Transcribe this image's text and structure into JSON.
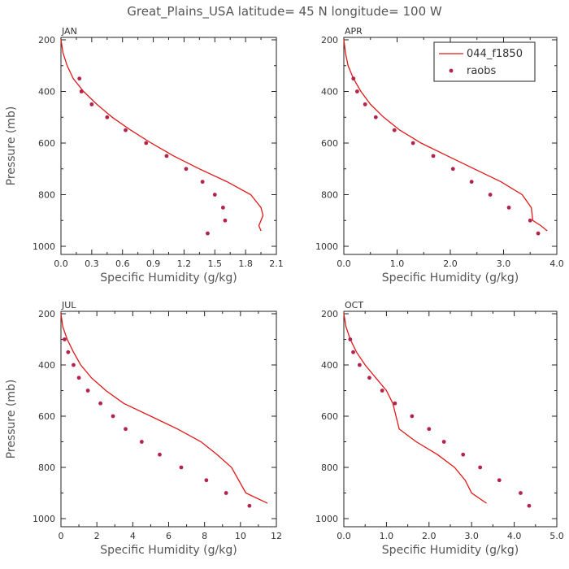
{
  "figure_title": "Great_Plains_USA   latitude=  45 N longitude=  100 W",
  "colors": {
    "model": "#e01818",
    "obs": "#b5234a",
    "text": "#555555"
  },
  "legend": {
    "model_label": "044_f1850",
    "obs_label": "raobs"
  },
  "chart_data": [
    {
      "type": "line",
      "panel": "JAN",
      "xlabel": "Specific Humidity (g/kg)",
      "ylabel": "Pressure (mb)",
      "xlim": [
        0,
        2.1
      ],
      "ylim": [
        200,
        1000
      ],
      "y_inverted": true,
      "xticks": [
        0,
        0.3,
        0.6,
        0.9,
        1.2,
        1.5,
        1.8,
        2.1
      ],
      "xtick_labels": [
        "0.0",
        "0.3",
        "0.6",
        "0.9",
        "1.2",
        "1.5",
        "1.8",
        "2.1"
      ],
      "yticks": [
        200,
        400,
        600,
        800,
        1000
      ],
      "ytick_labels": [
        "200",
        "400",
        "600",
        "800",
        "1000"
      ],
      "model": {
        "name": "044_f1850",
        "q": [
          0.0,
          0.02,
          0.06,
          0.12,
          0.22,
          0.35,
          0.5,
          0.68,
          0.88,
          1.1,
          1.35,
          1.62,
          1.85,
          1.95,
          1.97,
          1.94,
          1.93,
          1.95
        ],
        "p": [
          200,
          250,
          300,
          350,
          400,
          450,
          500,
          550,
          600,
          650,
          700,
          750,
          800,
          850,
          880,
          910,
          920,
          940
        ]
      },
      "raobs": {
        "name": "raobs",
        "q": [
          0.18,
          0.2,
          0.3,
          0.45,
          0.63,
          0.83,
          1.03,
          1.22,
          1.38,
          1.5,
          1.58,
          1.6,
          1.43
        ],
        "p": [
          350,
          400,
          450,
          500,
          550,
          600,
          650,
          700,
          750,
          800,
          850,
          900,
          950
        ]
      }
    },
    {
      "type": "line",
      "panel": "APR",
      "xlabel": "Specific Humidity (g/kg)",
      "ylabel": "",
      "xlim": [
        0,
        4.0
      ],
      "ylim": [
        200,
        1000
      ],
      "y_inverted": true,
      "xticks": [
        0,
        1,
        2,
        3,
        4
      ],
      "xtick_labels": [
        "0.0",
        "1.0",
        "2.0",
        "3.0",
        "4.0"
      ],
      "yticks": [
        200,
        400,
        600,
        800,
        1000
      ],
      "ytick_labels": [
        "200",
        "400",
        "600",
        "800",
        "1000"
      ],
      "model": {
        "name": "044_f1850",
        "q": [
          0.0,
          0.03,
          0.08,
          0.18,
          0.32,
          0.5,
          0.75,
          1.05,
          1.45,
          1.95,
          2.45,
          2.95,
          3.35,
          3.52,
          3.55,
          3.7,
          3.82
        ],
        "p": [
          200,
          250,
          300,
          350,
          400,
          450,
          500,
          550,
          600,
          650,
          700,
          750,
          800,
          850,
          900,
          920,
          940
        ]
      },
      "raobs": {
        "name": "raobs",
        "q": [
          0.18,
          0.25,
          0.4,
          0.6,
          0.95,
          1.3,
          1.68,
          2.05,
          2.4,
          2.75,
          3.1,
          3.5,
          3.65
        ],
        "p": [
          350,
          400,
          450,
          500,
          550,
          600,
          650,
          700,
          750,
          800,
          850,
          900,
          950
        ]
      }
    },
    {
      "type": "line",
      "panel": "JUL",
      "xlabel": "Specific Humidity (g/kg)",
      "ylabel": "Pressure (mb)",
      "xlim": [
        0,
        12
      ],
      "ylim": [
        200,
        1000
      ],
      "y_inverted": true,
      "xticks": [
        0,
        2,
        4,
        6,
        8,
        10,
        12
      ],
      "xtick_labels": [
        "0",
        "2",
        "4",
        "6",
        "8",
        "10",
        "12"
      ],
      "yticks": [
        200,
        400,
        600,
        800,
        1000
      ],
      "ytick_labels": [
        "200",
        "400",
        "600",
        "800",
        "1000"
      ],
      "model": {
        "name": "044_f1850",
        "q": [
          0.0,
          0.1,
          0.35,
          0.7,
          1.1,
          1.7,
          2.5,
          3.5,
          5.0,
          6.5,
          7.8,
          8.7,
          9.5,
          10.3,
          11.5
        ],
        "p": [
          200,
          250,
          300,
          350,
          400,
          450,
          500,
          550,
          600,
          650,
          700,
          750,
          800,
          900,
          940
        ]
      },
      "raobs": {
        "name": "raobs",
        "q": [
          0.2,
          0.4,
          0.7,
          1.0,
          1.5,
          2.2,
          2.9,
          3.6,
          4.5,
          5.5,
          6.7,
          8.1,
          9.2,
          10.5
        ],
        "p": [
          300,
          350,
          400,
          450,
          500,
          550,
          600,
          650,
          700,
          750,
          800,
          850,
          900,
          950
        ]
      }
    },
    {
      "type": "line",
      "panel": "OCT",
      "xlabel": "Specific Humidity (g/kg)",
      "ylabel": "",
      "xlim": [
        0,
        5.0
      ],
      "ylim": [
        200,
        1000
      ],
      "y_inverted": true,
      "xticks": [
        0,
        1,
        2,
        3,
        4,
        5
      ],
      "xtick_labels": [
        "0.0",
        "1.0",
        "2.0",
        "3.0",
        "4.0",
        "5.0"
      ],
      "yticks": [
        200,
        400,
        600,
        800,
        1000
      ],
      "ytick_labels": [
        "200",
        "400",
        "600",
        "800",
        "1000"
      ],
      "model": {
        "name": "044_f1850",
        "q": [
          0.0,
          0.05,
          0.15,
          0.3,
          0.5,
          0.75,
          1.0,
          1.15,
          1.3,
          1.7,
          2.2,
          2.6,
          2.85,
          3.0,
          3.35
        ],
        "p": [
          200,
          250,
          300,
          350,
          400,
          450,
          500,
          550,
          650,
          700,
          750,
          800,
          850,
          900,
          940
        ]
      },
      "raobs": {
        "name": "raobs",
        "q": [
          0.15,
          0.22,
          0.37,
          0.6,
          0.9,
          1.2,
          1.6,
          2.0,
          2.35,
          2.8,
          3.2,
          3.65,
          4.15,
          4.35
        ],
        "p": [
          300,
          350,
          400,
          450,
          500,
          550,
          600,
          650,
          700,
          750,
          800,
          850,
          900,
          950
        ]
      }
    }
  ]
}
